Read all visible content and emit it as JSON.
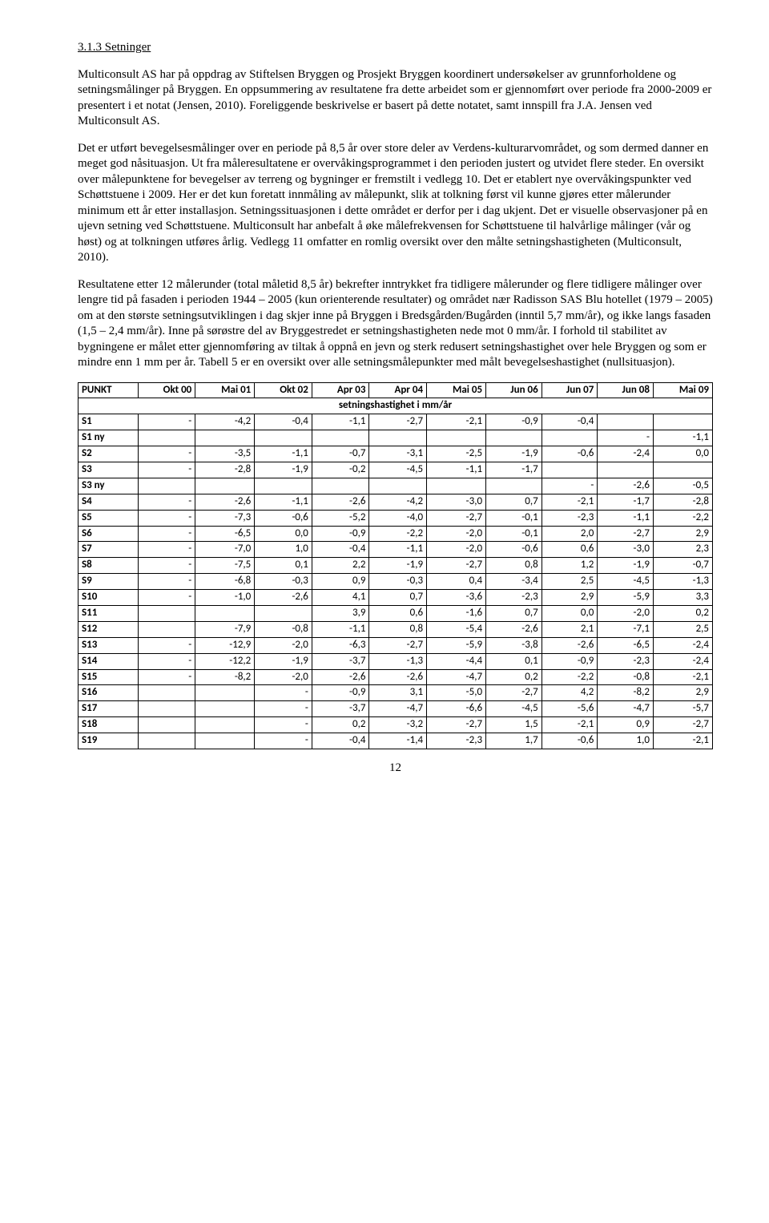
{
  "section": {
    "heading": "3.1.3  Setninger",
    "p1": "Multiconsult AS har på oppdrag av Stiftelsen Bryggen og Prosjekt Bryggen koordinert undersøkelser av grunnforholdene og setningsmålinger på Bryggen. En oppsummering av resultatene fra dette arbeidet som er gjennomført over periode fra 2000-2009 er presentert i et notat (Jensen, 2010). Foreliggende beskrivelse er basert på dette notatet, samt innspill fra J.A. Jensen ved Multiconsult AS.",
    "p2": "Det er utført bevegelsesmålinger over en periode på 8,5 år over store deler av Verdens-kulturarvområdet, og som dermed danner en meget god nåsituasjon. Ut fra måleresultatene er overvåkingsprogrammet i den perioden justert og utvidet flere steder. En oversikt over målepunktene for bevegelser av terreng og bygninger er fremstilt i vedlegg 10. Det er etablert nye overvåkingspunkter ved Schøttstuene i 2009. Her er det kun foretatt innmåling av målepunkt, slik at tolkning først vil kunne gjøres etter målerunder minimum ett år etter installasjon. Setningssituasjonen i dette området er derfor per i dag ukjent. Det er visuelle observasjoner på en ujevn setning ved Schøttstuene. Multiconsult har anbefalt å øke målefrekvensen for Schøttstuene til halvårlige målinger (vår og høst) og at tolkningen utføres årlig. Vedlegg 11 omfatter en romlig oversikt over den målte setningshastigheten (Multiconsult, 2010).",
    "p3": "Resultatene etter 12 målerunder (total måletid 8,5 år) bekrefter inntrykket fra tidligere målerunder og flere tidligere målinger over lengre tid på fasaden i perioden 1944 – 2005 (kun orienterende resultater) og området nær Radisson SAS Blu hotellet (1979 – 2005) om at den største setningsutviklingen i dag skjer inne på Bryggen i Bredsgården/Bugården (inntil 5,7 mm/år), og ikke langs fasaden (1,5 – 2,4 mm/år). Inne på sørøstre del av Bryggestredet er setningshastigheten nede mot 0 mm/år. I forhold til stabilitet av bygningene er målet etter gjennomføring av tiltak å oppnå en jevn og sterk redusert setningshastighet over hele Bryggen og som er mindre enn 1 mm per år. Tabell 5 er en oversikt over alle setningsmålepunkter med målt bevegelseshastighet (nullsituasjon)."
  },
  "table": {
    "header": [
      "PUNKT",
      "Okt 00",
      "Mai 01",
      "Okt 02",
      "Apr 03",
      "Apr 04",
      "Mai 05",
      "Jun 06",
      "Jun 07",
      "Jun 08",
      "Mai 09"
    ],
    "subhead": "setningshastighet i mm/år",
    "rows": [
      {
        "id": "S1",
        "c": [
          "-",
          "-4,2",
          "-0,4",
          "-1,1",
          "-2,7",
          "-2,1",
          "-0,9",
          "-0,4",
          "",
          ""
        ]
      },
      {
        "id": "S1 ny",
        "c": [
          "",
          "",
          "",
          "",
          "",
          "",
          "",
          "",
          "-",
          "-1,1"
        ]
      },
      {
        "id": "S2",
        "c": [
          "-",
          "-3,5",
          "-1,1",
          "-0,7",
          "-3,1",
          "-2,5",
          "-1,9",
          "-0,6",
          "-2,4",
          "0,0"
        ]
      },
      {
        "id": "S3",
        "c": [
          "-",
          "-2,8",
          "-1,9",
          "-0,2",
          "-4,5",
          "-1,1",
          "-1,7",
          "",
          "",
          ""
        ]
      },
      {
        "id": "S3 ny",
        "c": [
          "",
          "",
          "",
          "",
          "",
          "",
          "",
          "-",
          "-2,6",
          "-0,5"
        ]
      },
      {
        "id": "S4",
        "c": [
          "-",
          "-2,6",
          "-1,1",
          "-2,6",
          "-4,2",
          "-3,0",
          "0,7",
          "-2,1",
          "-1,7",
          "-2,8"
        ]
      },
      {
        "id": "S5",
        "c": [
          "-",
          "-7,3",
          "-0,6",
          "-5,2",
          "-4,0",
          "-2,7",
          "-0,1",
          "-2,3",
          "-1,1",
          "-2,2"
        ]
      },
      {
        "id": "S6",
        "c": [
          "-",
          "-6,5",
          "0,0",
          "-0,9",
          "-2,2",
          "-2,0",
          "-0,1",
          "2,0",
          "-2,7",
          "2,9"
        ]
      },
      {
        "id": "S7",
        "c": [
          "-",
          "-7,0",
          "1,0",
          "-0,4",
          "-1,1",
          "-2,0",
          "-0,6",
          "0,6",
          "-3,0",
          "2,3"
        ]
      },
      {
        "id": "S8",
        "c": [
          "-",
          "-7,5",
          "0,1",
          "2,2",
          "-1,9",
          "-2,7",
          "0,8",
          "1,2",
          "-1,9",
          "-0,7"
        ]
      },
      {
        "id": "S9",
        "c": [
          "-",
          "-6,8",
          "-0,3",
          "0,9",
          "-0,3",
          "0,4",
          "-3,4",
          "2,5",
          "-4,5",
          "-1,3"
        ]
      },
      {
        "id": "S10",
        "c": [
          "-",
          "-1,0",
          "-2,6",
          "4,1",
          "0,7",
          "-3,6",
          "-2,3",
          "2,9",
          "-5,9",
          "3,3"
        ]
      },
      {
        "id": "S11",
        "c": [
          "",
          "",
          "",
          "3,9",
          "0,6",
          "-1,6",
          "0,7",
          "0,0",
          "-2,0",
          "0,2"
        ]
      },
      {
        "id": "S12",
        "c": [
          "",
          "-7,9",
          "-0,8",
          "-1,1",
          "0,8",
          "-5,4",
          "-2,6",
          "2,1",
          "-7,1",
          "2,5"
        ]
      },
      {
        "id": "S13",
        "c": [
          "-",
          "-12,9",
          "-2,0",
          "-6,3",
          "-2,7",
          "-5,9",
          "-3,8",
          "-2,6",
          "-6,5",
          "-2,4"
        ]
      },
      {
        "id": "S14",
        "c": [
          "-",
          "-12,2",
          "-1,9",
          "-3,7",
          "-1,3",
          "-4,4",
          "0,1",
          "-0,9",
          "-2,3",
          "-2,4"
        ]
      },
      {
        "id": "S15",
        "c": [
          "-",
          "-8,2",
          "-2,0",
          "-2,6",
          "-2,6",
          "-4,7",
          "0,2",
          "-2,2",
          "-0,8",
          "-2,1"
        ]
      },
      {
        "id": "S16",
        "c": [
          "",
          "",
          "-",
          "-0,9",
          "3,1",
          "-5,0",
          "-2,7",
          "4,2",
          "-8,2",
          "2,9"
        ]
      },
      {
        "id": "S17",
        "c": [
          "",
          "",
          "-",
          "-3,7",
          "-4,7",
          "-6,6",
          "-4,5",
          "-5,6",
          "-4,7",
          "-5,7"
        ]
      },
      {
        "id": "S18",
        "c": [
          "",
          "",
          "-",
          "0,2",
          "-3,2",
          "-2,7",
          "1,5",
          "-2,1",
          "0,9",
          "-2,7"
        ]
      },
      {
        "id": "S19",
        "c": [
          "",
          "",
          "-",
          "-0,4",
          "-1,4",
          "-2,3",
          "1,7",
          "-0,6",
          "1,0",
          "-2,1"
        ]
      }
    ]
  },
  "pageNumber": "12"
}
